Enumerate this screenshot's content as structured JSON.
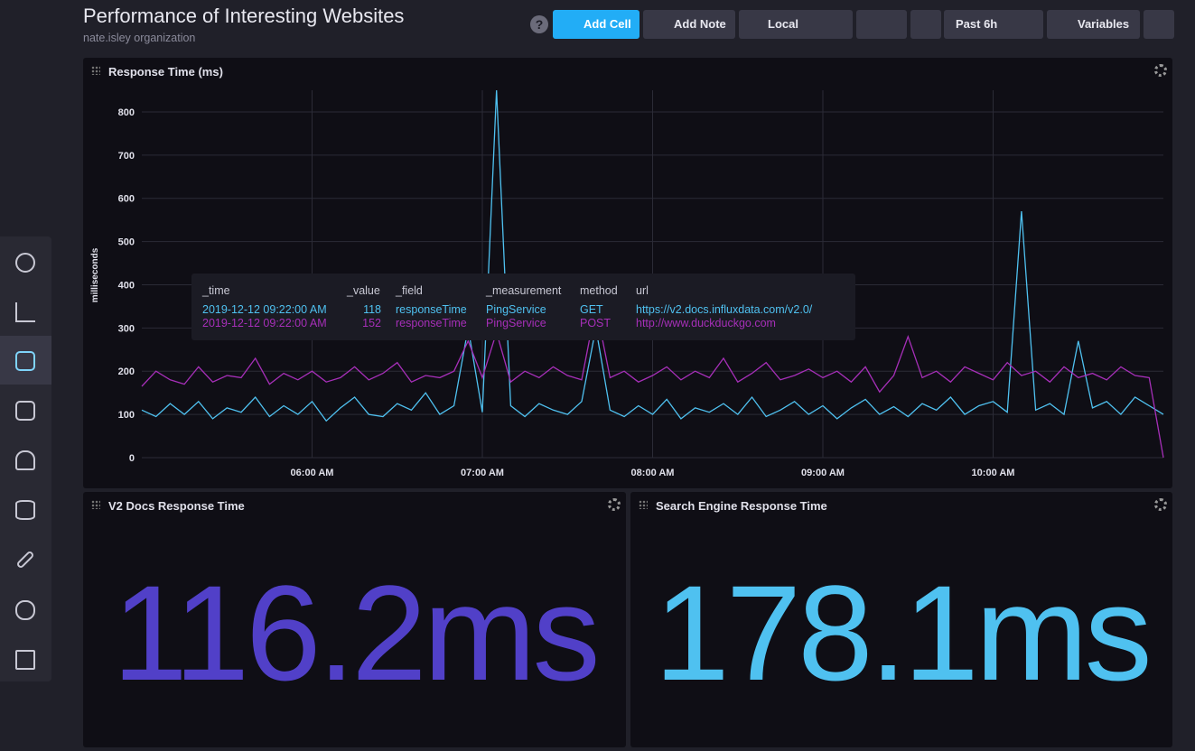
{
  "header": {
    "title": "Performance of Interesting Websites",
    "subtitle": "nate.isley organization"
  },
  "toolbar": {
    "buttons": [
      "Add Cell",
      "Add Note",
      "Local",
      "Past 6h",
      "Variables"
    ]
  },
  "chart_data": {
    "type": "line",
    "title": "Response Time (ms)",
    "y_label": "milliseconds",
    "x": [
      "05:00 AM",
      "05:05 AM",
      "05:10 AM",
      "05:15 AM",
      "05:20 AM",
      "05:25 AM",
      "05:30 AM",
      "05:35 AM",
      "05:40 AM",
      "05:45 AM",
      "05:50 AM",
      "05:55 AM",
      "06:00 AM",
      "06:05 AM",
      "06:10 AM",
      "06:15 AM",
      "06:20 AM",
      "06:25 AM",
      "06:30 AM",
      "06:35 AM",
      "06:40 AM",
      "06:45 AM",
      "06:50 AM",
      "06:55 AM",
      "07:00 AM",
      "07:05 AM",
      "07:10 AM",
      "07:15 AM",
      "07:20 AM",
      "07:25 AM",
      "07:30 AM",
      "07:35 AM",
      "07:40 AM",
      "07:45 AM",
      "07:50 AM",
      "07:55 AM",
      "08:00 AM",
      "08:05 AM",
      "08:10 AM",
      "08:15 AM",
      "08:20 AM",
      "08:25 AM",
      "08:30 AM",
      "08:35 AM",
      "08:40 AM",
      "08:45 AM",
      "08:50 AM",
      "08:55 AM",
      "09:00 AM",
      "09:05 AM",
      "09:10 AM",
      "09:15 AM",
      "09:20 AM",
      "09:25 AM",
      "09:30 AM",
      "09:35 AM",
      "09:40 AM",
      "09:45 AM",
      "09:50 AM",
      "09:55 AM",
      "10:00 AM",
      "10:05 AM",
      "10:10 AM",
      "10:15 AM",
      "10:20 AM",
      "10:25 AM",
      "10:30 AM",
      "10:35 AM",
      "10:40 AM",
      "10:45 AM",
      "10:50 AM",
      "10:55 AM",
      "11:00 AM"
    ],
    "xlim": [
      "05:00 AM",
      "11:00 AM"
    ],
    "xticks": [
      "06:00 AM",
      "07:00 AM",
      "08:00 AM",
      "09:00 AM",
      "10:00 AM"
    ],
    "ylim": [
      0,
      850
    ],
    "yticks": [
      0,
      100,
      200,
      300,
      400,
      500,
      600,
      700,
      800
    ],
    "grid": true,
    "series": [
      {
        "color": "#4fc1f0",
        "values": [
          110,
          95,
          125,
          100,
          130,
          90,
          115,
          105,
          140,
          95,
          120,
          100,
          130,
          85,
          115,
          140,
          100,
          95,
          125,
          110,
          150,
          100,
          120,
          300,
          105,
          850,
          120,
          95,
          125,
          110,
          100,
          130,
          300,
          110,
          95,
          120,
          100,
          135,
          90,
          115,
          105,
          125,
          100,
          140,
          95,
          110,
          130,
          100,
          120,
          90,
          115,
          135,
          100,
          118,
          95,
          125,
          110,
          140,
          100,
          120,
          130,
          105,
          570,
          110,
          125,
          100,
          270,
          115,
          130,
          100,
          140,
          120,
          100
        ]
      },
      {
        "color": "#a62fb8",
        "values": [
          165,
          200,
          180,
          170,
          210,
          175,
          190,
          185,
          230,
          170,
          195,
          180,
          200,
          175,
          185,
          210,
          180,
          195,
          220,
          175,
          190,
          185,
          200,
          270,
          185,
          290,
          175,
          200,
          185,
          210,
          190,
          180,
          350,
          185,
          200,
          175,
          190,
          210,
          180,
          200,
          185,
          230,
          175,
          195,
          220,
          180,
          190,
          205,
          185,
          200,
          175,
          210,
          152,
          190,
          280,
          185,
          200,
          175,
          210,
          195,
          180,
          220,
          190,
          200,
          175,
          210,
          185,
          195,
          180,
          210,
          190,
          185,
          0
        ]
      }
    ]
  },
  "tooltip": {
    "headers": [
      "_time",
      "_value",
      "_field",
      "_measurement",
      "method",
      "url"
    ],
    "rows": [
      [
        "2019-12-12 09:22:00 AM",
        118,
        "responseTime",
        "PingService",
        "GET",
        "https://v2.docs.influxdata.com/v2.0/"
      ],
      [
        "2019-12-12 09:22:00 AM",
        152,
        "responseTime",
        "PingService",
        "POST",
        "http://www.duckduckgo.com"
      ]
    ]
  },
  "stat_cells": [
    {
      "title": "V2 Docs Response Time",
      "value": "116.2ms",
      "color": "#5140c8"
    },
    {
      "title": "Search Engine Response Time",
      "value": "178.1ms",
      "color": "#4fc1f0"
    }
  ]
}
